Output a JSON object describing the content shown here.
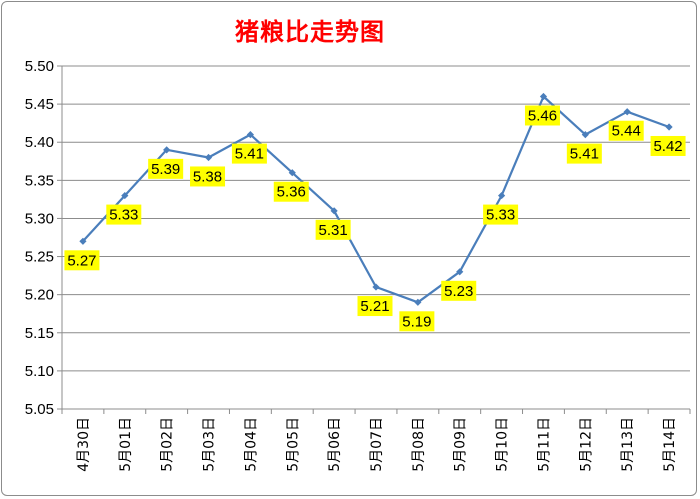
{
  "chart_data": {
    "type": "line",
    "title": "猪粮比走势图",
    "categories": [
      "4月30日",
      "5月01日",
      "5月02日",
      "5月03日",
      "5月04日",
      "5月05日",
      "5月06日",
      "5月07日",
      "5月08日",
      "5月09日",
      "5月10日",
      "5月11日",
      "5月12日",
      "5月13日",
      "5月14日"
    ],
    "series": [
      {
        "values": [
          5.27,
          5.33,
          5.39,
          5.38,
          5.41,
          5.36,
          5.31,
          5.21,
          5.19,
          5.23,
          5.33,
          5.46,
          5.41,
          5.44,
          5.42
        ]
      }
    ],
    "ylim": [
      5.05,
      5.5
    ],
    "yticks": [
      "5.50",
      "5.45",
      "5.40",
      "5.35",
      "5.30",
      "5.25",
      "5.20",
      "5.15",
      "5.10",
      "5.05"
    ],
    "grid": true,
    "data_labels": true,
    "line_color": "#4a7ebb",
    "label_bg": "#ffff00",
    "title_color": "#ff0000"
  }
}
